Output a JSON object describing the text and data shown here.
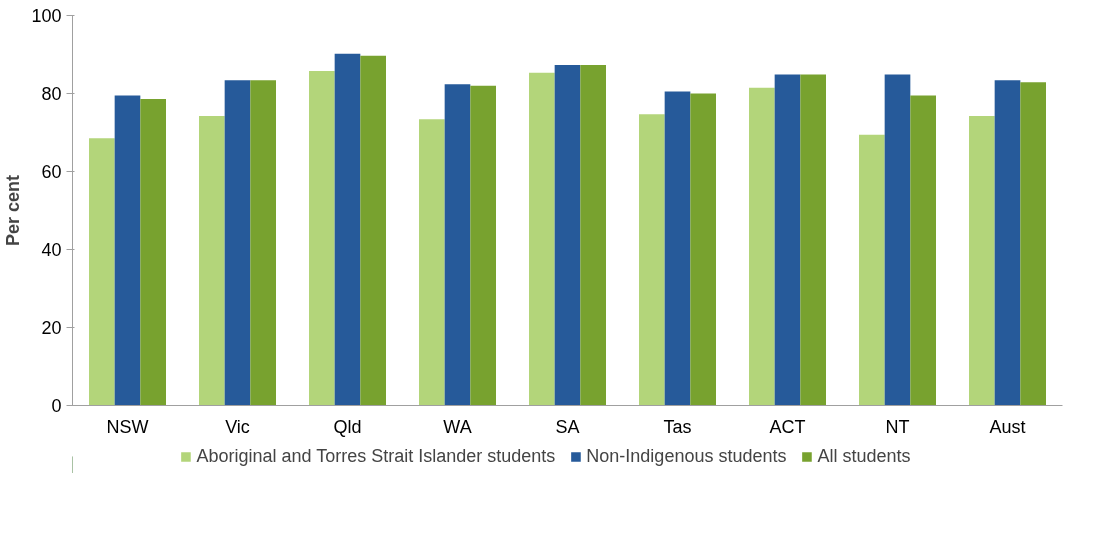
{
  "chart_data": {
    "type": "bar",
    "ylabel": "Per cent",
    "categories": [
      "NSW",
      "Vic",
      "Qld",
      "WA",
      "SA",
      "Tas",
      "ACT",
      "NT",
      "Aust"
    ],
    "series": [
      {
        "name": "Aboriginal and Torres Strait Islander students",
        "color": "#b3d57a",
        "values": [
          68.5,
          74.2,
          85.8,
          73.4,
          85.3,
          74.7,
          81.5,
          69.4,
          74.2
        ]
      },
      {
        "name": "Non-Indigenous students",
        "color": "#265a9a",
        "values": [
          79.5,
          83.4,
          90.2,
          82.4,
          87.3,
          80.5,
          84.9,
          84.9,
          83.4
        ]
      },
      {
        "name": "All students",
        "color": "#78a22f",
        "values": [
          78.6,
          83.4,
          89.7,
          82.0,
          87.3,
          80.0,
          84.9,
          79.5,
          82.9
        ]
      }
    ],
    "ylim": [
      0,
      100
    ],
    "yticks": [
      0,
      20,
      40,
      60,
      80,
      100
    ],
    "grid": false,
    "legend": "bottom"
  }
}
